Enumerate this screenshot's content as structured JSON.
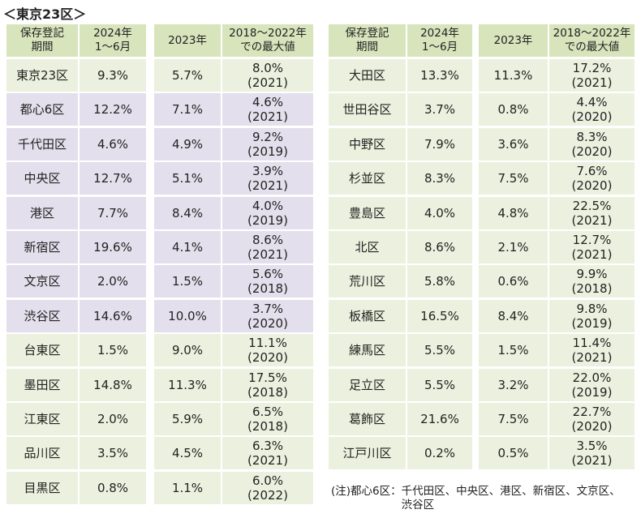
{
  "title": "＜東京23区＞",
  "header": [
    [
      "保存登記",
      "期間"
    ],
    [
      "2024年",
      "1～6月"
    ],
    [
      "2023年"
    ],
    [
      "2018～2022年",
      "での最大値"
    ]
  ],
  "left_table": {
    "rows": [
      {
        "name": "東京23区",
        "h1_2024": "9.3%",
        "y2023": "5.7%",
        "max": "8.0%",
        "max_year": "(2021)",
        "color": "#ebf1de"
      },
      {
        "name": "都心6区",
        "h1_2024": "12.2%",
        "y2023": "7.1%",
        "max": "4.6%",
        "max_year": "(2021)",
        "color": "#e4dfec"
      },
      {
        "name": "千代田区",
        "h1_2024": "4.6%",
        "y2023": "4.9%",
        "max": "9.2%",
        "max_year": "(2019)",
        "color": "#e4dfec"
      },
      {
        "name": "中央区",
        "h1_2024": "12.7%",
        "y2023": "5.1%",
        "max": "3.9%",
        "max_year": "(2021)",
        "color": "#e4dfec"
      },
      {
        "name": "港区",
        "h1_2024": "7.7%",
        "y2023": "8.4%",
        "max": "4.0%",
        "max_year": "(2019)",
        "color": "#e4dfec"
      },
      {
        "name": "新宿区",
        "h1_2024": "19.6%",
        "y2023": "4.1%",
        "max": "8.6%",
        "max_year": "(2021)",
        "color": "#e4dfec"
      },
      {
        "name": "文京区",
        "h1_2024": "2.0%",
        "y2023": "1.5%",
        "max": "5.6%",
        "max_year": "(2018)",
        "color": "#e4dfec"
      },
      {
        "name": "渋谷区",
        "h1_2024": "14.6%",
        "y2023": "10.0%",
        "max": "3.7%",
        "max_year": "(2020)",
        "color": "#e4dfec"
      },
      {
        "name": "台東区",
        "h1_2024": "1.5%",
        "y2023": "9.0%",
        "max": "11.1%",
        "max_year": "(2020)",
        "color": "#ebf1de"
      },
      {
        "name": "墨田区",
        "h1_2024": "14.8%",
        "y2023": "11.3%",
        "max": "17.5%",
        "max_year": "(2018)",
        "color": "#ebf1de"
      },
      {
        "name": "江東区",
        "h1_2024": "2.0%",
        "y2023": "5.9%",
        "max": "6.5%",
        "max_year": "(2018)",
        "color": "#ebf1de"
      },
      {
        "name": "品川区",
        "h1_2024": "3.5%",
        "y2023": "4.5%",
        "max": "6.3%",
        "max_year": "(2021)",
        "color": "#ebf1de"
      },
      {
        "name": "目黒区",
        "h1_2024": "0.8%",
        "y2023": "1.1%",
        "max": "6.0%",
        "max_year": "(2022)",
        "color": "#ebf1de"
      }
    ]
  },
  "right_table": {
    "rows": [
      {
        "name": "大田区",
        "h1_2024": "13.3%",
        "y2023": "11.3%",
        "max": "17.2%",
        "max_year": "(2021)",
        "color": "#ebf1de"
      },
      {
        "name": "世田谷区",
        "h1_2024": "3.7%",
        "y2023": "0.8%",
        "max": "4.4%",
        "max_year": "(2020)",
        "color": "#ebf1de"
      },
      {
        "name": "中野区",
        "h1_2024": "7.9%",
        "y2023": "3.6%",
        "max": "8.3%",
        "max_year": "(2020)",
        "color": "#ebf1de"
      },
      {
        "name": "杉並区",
        "h1_2024": "8.3%",
        "y2023": "7.5%",
        "max": "7.6%",
        "max_year": "(2020)",
        "color": "#ebf1de"
      },
      {
        "name": "豊島区",
        "h1_2024": "4.0%",
        "y2023": "4.8%",
        "max": "22.5%",
        "max_year": "(2021)",
        "color": "#ebf1de"
      },
      {
        "name": "北区",
        "h1_2024": "8.6%",
        "y2023": "2.1%",
        "max": "12.7%",
        "max_year": "(2021)",
        "color": "#ebf1de"
      },
      {
        "name": "荒川区",
        "h1_2024": "5.8%",
        "y2023": "0.6%",
        "max": "9.9%",
        "max_year": "(2018)",
        "color": "#ebf1de"
      },
      {
        "name": "板橋区",
        "h1_2024": "16.5%",
        "y2023": "8.4%",
        "max": "9.8%",
        "max_year": "(2019)",
        "color": "#ebf1de"
      },
      {
        "name": "練馬区",
        "h1_2024": "5.5%",
        "y2023": "1.5%",
        "max": "11.4%",
        "max_year": "(2021)",
        "color": "#ebf1de"
      },
      {
        "name": "足立区",
        "h1_2024": "5.5%",
        "y2023": "3.2%",
        "max": "22.0%",
        "max_year": "(2019)",
        "color": "#ebf1de"
      },
      {
        "name": "葛飾区",
        "h1_2024": "21.6%",
        "y2023": "7.5%",
        "max": "22.7%",
        "max_year": "(2020)",
        "color": "#ebf1de"
      },
      {
        "name": "江戸川区",
        "h1_2024": "0.2%",
        "y2023": "0.5%",
        "max": "3.5%",
        "max_year": "(2021)",
        "color": "#ebf1de"
      }
    ]
  },
  "header_color": "#d8e4bc",
  "note": {
    "label": "(注)都心6区：",
    "text": "千代田区、中央区、港区、新宿区、文京区、渋谷区"
  }
}
